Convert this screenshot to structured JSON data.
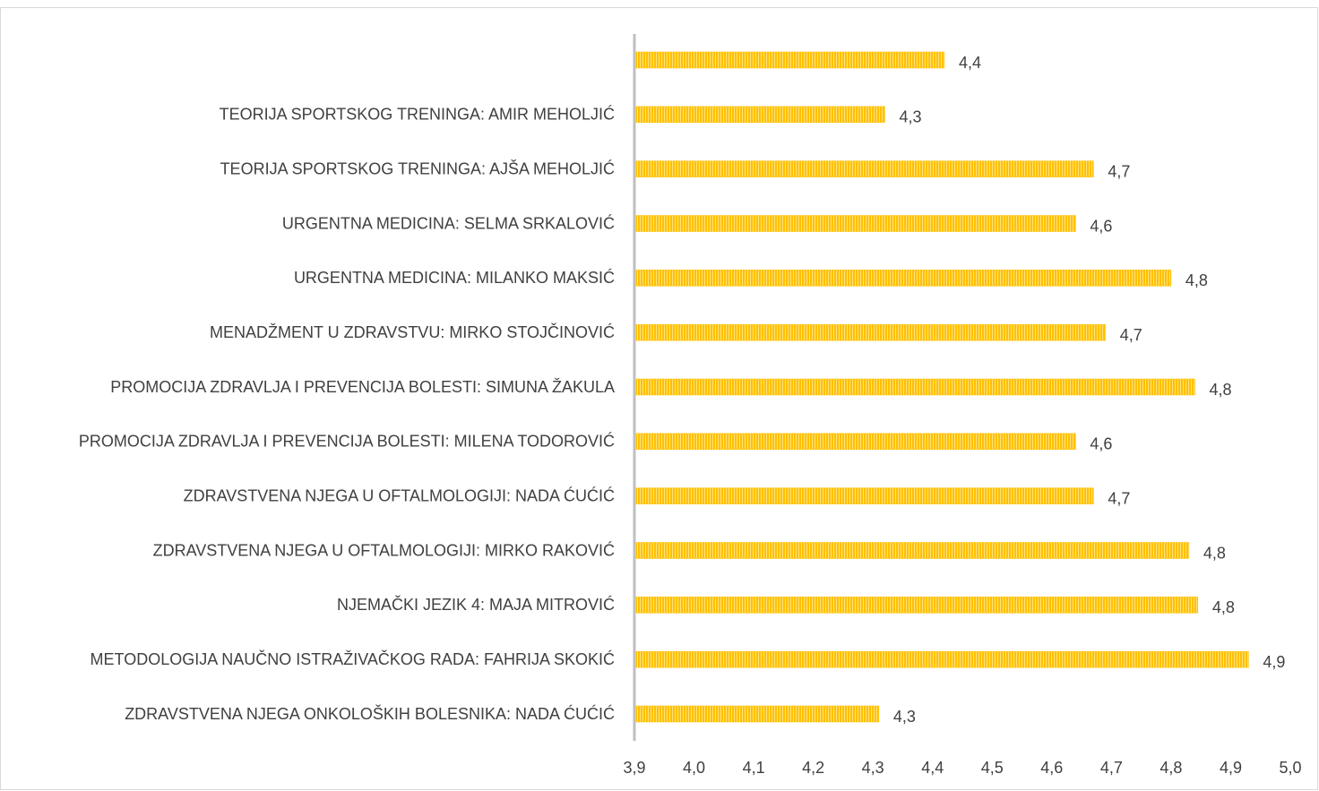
{
  "chart_data": {
    "type": "bar",
    "orientation": "horizontal",
    "categories": [
      null,
      "TEORIJA SPORTSKOG TRENINGA: AMIR MEHOLJIĆ",
      "TEORIJA SPORTSKOG TRENINGA: AJŠA MEHOLJIĆ",
      "URGENTNA MEDICINA: SELMA SRKALOVIĆ",
      "URGENTNA MEDICINA: MILANKO MAKSIĆ",
      "MENADŽMENT U ZDRAVSTVU: MIRKO STOJČINOVIĆ",
      "PROMOCIJA ZDRAVLJA I PREVENCIJA BOLESTI: SIMUNA ŽAKULA",
      "PROMOCIJA ZDRAVLJA I PREVENCIJA BOLESTI: MILENA TODOROVIĆ",
      "ZDRAVSTVENA NJEGA U OFTALMOLOGIJI: NADA ĆUĆIĆ",
      "ZDRAVSTVENA NJEGA U OFTALMOLOGIJI: MIRKO RAKOVIĆ",
      "NJEMAČKI JEZIK 4: MAJA MITROVIĆ",
      "METODOLOGIJA NAUČNO ISTRAŽIVAČKOG RADA: FAHRIJA SKOKIĆ",
      "ZDRAVSTVENA NJEGA ONKOLOŠKIH BOLESNIKA: NADA ĆUĆIĆ"
    ],
    "values": [
      4.42,
      4.32,
      4.67,
      4.64,
      4.8,
      4.69,
      4.84,
      4.64,
      4.67,
      4.83,
      4.845,
      4.93,
      4.31
    ],
    "value_labels": [
      "4,4",
      "4,3",
      "4,7",
      "4,6",
      "4,8",
      "4,7",
      "4,8",
      "4,6",
      "4,7",
      "4,8",
      "4,8",
      "4,9",
      "4,3"
    ],
    "color": "#ffc000",
    "xlim": [
      3.9,
      5.0
    ],
    "xticks": [
      {
        "value": 3.9,
        "label": "3,9"
      },
      {
        "value": 4.0,
        "label": "4,0"
      },
      {
        "value": 4.1,
        "label": "4,1"
      },
      {
        "value": 4.2,
        "label": "4,2"
      },
      {
        "value": 4.3,
        "label": "4,3"
      },
      {
        "value": 4.4,
        "label": "4,4"
      },
      {
        "value": 4.5,
        "label": "4,5"
      },
      {
        "value": 4.6,
        "label": "4,6"
      },
      {
        "value": 4.7,
        "label": "4,7"
      },
      {
        "value": 4.8,
        "label": "4,8"
      },
      {
        "value": 4.9,
        "label": "4,9"
      },
      {
        "value": 5.0,
        "label": "5,0"
      }
    ],
    "grid": false
  }
}
